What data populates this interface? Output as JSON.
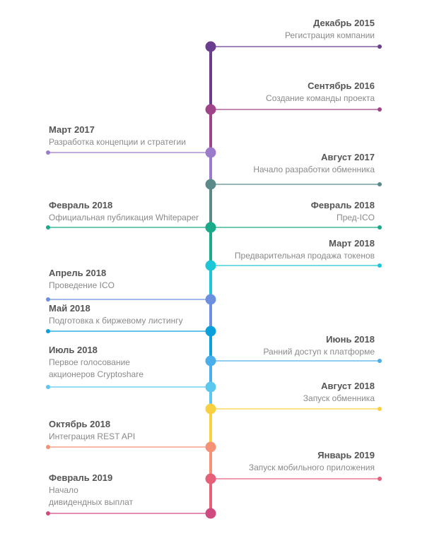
{
  "events": [
    {
      "side": "right",
      "date": "Декабрь 2015",
      "desc": [
        "Регистрация компании"
      ],
      "color": "#6a3d8f"
    },
    {
      "side": "right",
      "date": "Сентябрь 2016",
      "desc": [
        "Создание команды проекта"
      ],
      "color": "#a0448a"
    },
    {
      "side": "left",
      "date": "Март 2017",
      "desc": [
        "Разработка концепции и стратегии"
      ],
      "color": "#9b7bcc"
    },
    {
      "side": "right",
      "date": "Август 2017",
      "desc": [
        "Начало разработки обменника"
      ],
      "color": "#5a8a8a"
    },
    {
      "side": "left",
      "date": "Февраль 2018",
      "desc": [
        "Официальная публикация Whitepaper"
      ],
      "color": "#1aaa8a"
    },
    {
      "side": "right",
      "date": "Февраль 2018",
      "desc": [
        "Пред-ICO"
      ],
      "color": "#1aaa8a"
    },
    {
      "side": "right",
      "date": "Март 2018",
      "desc": [
        "Предварительная продажа токенов"
      ],
      "color": "#1cc6d6"
    },
    {
      "side": "left",
      "date": "Апрель 2018",
      "desc": [
        "Проведение ICO"
      ],
      "color": "#6d8fe0"
    },
    {
      "side": "left",
      "date": "Май 2018",
      "desc": [
        "Подготовка к биржевому листингу"
      ],
      "color": "#0aa0dc"
    },
    {
      "side": "right",
      "date": "Июнь 2018",
      "desc": [
        "Ранний доступ к платформе"
      ],
      "color": "#4aaeea"
    },
    {
      "side": "left",
      "date": "Июль 2018",
      "desc": [
        "Первое голосование",
        "акционеров Cryptoshare"
      ],
      "color": "#5cc8f0"
    },
    {
      "side": "right",
      "date": "Август 2018",
      "desc": [
        "Запуск обменника"
      ],
      "color": "#f9d040"
    },
    {
      "side": "left",
      "date": "Октябрь 2018",
      "desc": [
        "Интеграция REST API"
      ],
      "color": "#f59275"
    },
    {
      "side": "right",
      "date": "Январь 2019",
      "desc": [
        "Запуск мобильного приложения"
      ],
      "color": "#e6607a"
    },
    {
      "side": "left",
      "date": "Февраль 2019",
      "desc": [
        "Начало",
        "дивидендных выплат"
      ],
      "color": "#d04a82"
    }
  ]
}
